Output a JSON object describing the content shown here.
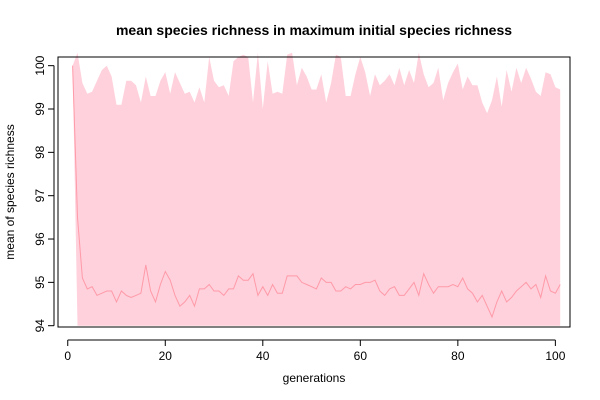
{
  "chart_data": {
    "type": "area",
    "title": "mean species richness in maximum initial species richness",
    "xlabel": "generations",
    "ylabel": "mean of species richness",
    "xlim": [
      -2,
      103
    ],
    "ylim": [
      93.97,
      100.2
    ],
    "xticks": [
      0,
      20,
      40,
      60,
      80,
      100
    ],
    "yticks": [
      94,
      95,
      96,
      97,
      98,
      99,
      100
    ],
    "grid": false,
    "colors": {
      "fill": "#ffd1dc",
      "line": "#ff9aa8"
    },
    "x": [
      1,
      2,
      3,
      4,
      5,
      6,
      7,
      8,
      9,
      10,
      11,
      12,
      13,
      14,
      15,
      16,
      17,
      18,
      19,
      20,
      21,
      22,
      23,
      24,
      25,
      26,
      27,
      28,
      29,
      30,
      31,
      32,
      33,
      34,
      35,
      36,
      37,
      38,
      39,
      40,
      41,
      42,
      43,
      44,
      45,
      46,
      47,
      48,
      49,
      50,
      51,
      52,
      53,
      54,
      55,
      56,
      57,
      58,
      59,
      60,
      61,
      62,
      63,
      64,
      65,
      66,
      67,
      68,
      69,
      70,
      71,
      72,
      73,
      74,
      75,
      76,
      77,
      78,
      79,
      80,
      81,
      82,
      83,
      84,
      85,
      86,
      87,
      88,
      89,
      90,
      91,
      92,
      93,
      94,
      95,
      96,
      97,
      98,
      99,
      100,
      101
    ],
    "series": [
      {
        "values_upper": [
          100.0,
          100.3,
          99.6,
          99.35,
          99.4,
          99.65,
          99.9,
          100.0,
          99.75,
          99.1,
          99.1,
          99.65,
          99.65,
          99.55,
          99.15,
          99.75,
          99.3,
          99.3,
          99.65,
          99.85,
          99.35,
          99.85,
          99.6,
          99.35,
          99.4,
          99.15,
          99.5,
          99.15,
          100.2,
          99.65,
          99.5,
          99.55,
          99.3,
          100.1,
          100.2,
          100.25,
          100.2,
          99.15,
          100.3,
          99.0,
          100.1,
          99.35,
          99.4,
          99.35,
          100.25,
          100.3,
          99.55,
          99.95,
          99.75,
          99.45,
          99.45,
          99.8,
          99.15,
          99.6,
          100.25,
          100.2,
          99.3,
          99.3,
          99.8,
          100.2,
          99.85,
          99.3,
          99.8,
          99.55,
          99.65,
          99.8,
          99.55,
          99.95,
          99.55,
          99.9,
          99.6,
          100.3,
          99.8,
          99.5,
          99.6,
          99.95,
          99.2,
          99.6,
          99.85,
          100.05,
          99.45,
          99.75,
          99.55,
          99.55,
          99.15,
          98.9,
          99.2,
          99.75,
          99.05,
          99.9,
          99.4,
          99.95,
          99.6,
          99.95,
          99.7,
          99.4,
          99.3,
          99.85,
          99.8,
          99.5,
          99.45
        ],
        "values_mean": [
          100.0,
          96.5,
          95.1,
          94.85,
          94.9,
          94.7,
          94.75,
          94.8,
          94.8,
          94.55,
          94.8,
          94.7,
          94.65,
          94.7,
          94.75,
          95.4,
          94.8,
          94.55,
          94.95,
          95.25,
          95.05,
          94.7,
          94.45,
          94.55,
          94.7,
          94.45,
          94.85,
          94.85,
          94.95,
          94.8,
          94.8,
          94.7,
          94.85,
          94.85,
          95.15,
          95.05,
          95.05,
          95.2,
          94.7,
          94.9,
          94.7,
          94.95,
          94.75,
          94.75,
          95.15,
          95.15,
          95.15,
          95.0,
          94.95,
          94.9,
          94.85,
          95.1,
          95.0,
          95.0,
          94.8,
          94.8,
          94.9,
          94.85,
          94.95,
          94.95,
          95.0,
          95.0,
          95.05,
          94.8,
          94.7,
          94.85,
          94.9,
          94.7,
          94.7,
          94.85,
          95.0,
          94.7,
          95.2,
          94.95,
          94.75,
          94.9,
          94.9,
          94.9,
          94.95,
          94.9,
          95.1,
          94.85,
          94.75,
          94.55,
          94.7,
          94.45,
          94.2,
          94.55,
          94.8,
          94.55,
          94.65,
          94.8,
          94.9,
          95.0,
          94.85,
          94.95,
          94.65,
          95.15,
          94.8,
          94.75,
          94.95
        ],
        "values_lower": [
          100.0,
          94.0,
          94.0,
          94.0,
          94.0,
          94.0,
          94.0,
          94.0,
          94.0,
          94.0,
          94.0,
          94.0,
          94.0,
          94.0,
          94.0,
          94.0,
          94.0,
          94.0,
          94.0,
          94.0,
          94.0,
          94.0,
          94.0,
          94.0,
          94.0,
          94.0,
          94.0,
          94.0,
          94.0,
          94.0,
          94.0,
          94.0,
          94.0,
          94.0,
          94.0,
          94.0,
          94.0,
          94.0,
          94.0,
          94.0,
          94.0,
          94.0,
          94.0,
          94.0,
          94.0,
          94.0,
          94.0,
          94.0,
          94.0,
          94.0,
          94.0,
          94.0,
          94.0,
          94.0,
          94.0,
          94.0,
          94.0,
          94.0,
          94.0,
          94.0,
          94.0,
          94.0,
          94.0,
          94.0,
          94.0,
          94.0,
          94.0,
          94.0,
          94.0,
          94.0,
          94.0,
          94.0,
          94.0,
          94.0,
          94.0,
          94.0,
          94.0,
          94.0,
          94.0,
          94.0,
          94.0,
          94.0,
          94.0,
          94.0,
          94.0,
          94.0,
          94.0,
          94.0,
          94.0,
          94.0,
          94.0,
          94.0,
          94.0,
          94.0,
          94.0,
          94.0,
          94.0,
          94.0,
          94.0,
          94.0,
          94.0
        ]
      }
    ]
  }
}
